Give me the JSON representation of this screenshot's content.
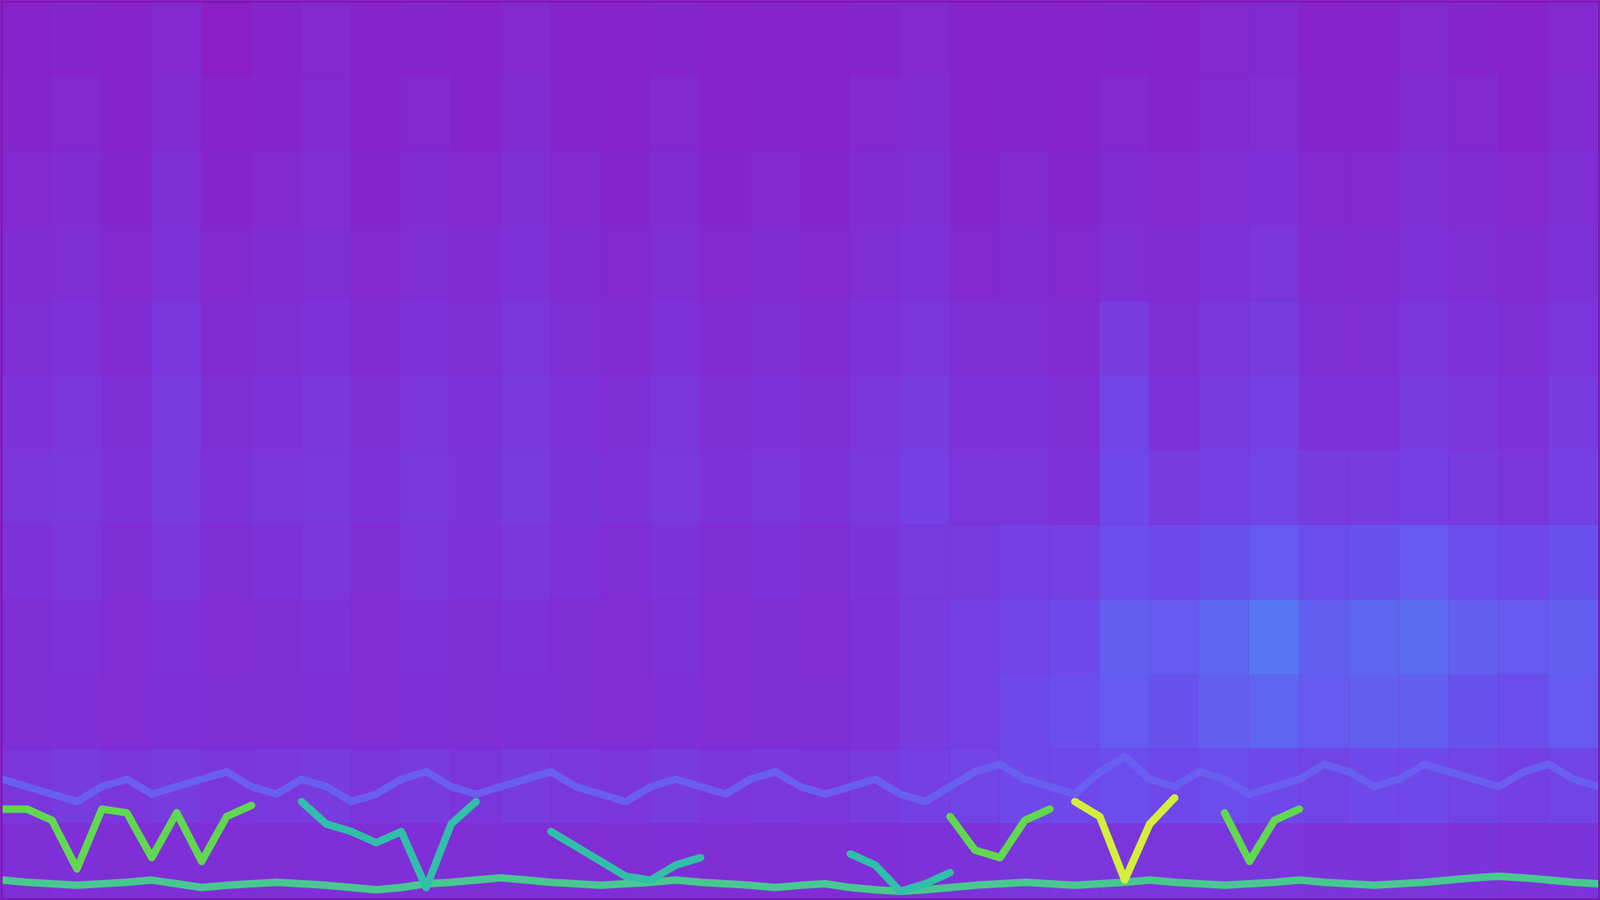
{
  "chart_data": {
    "type": "heatmap",
    "tick_labels": false,
    "xlim": [
      0,
      32
    ],
    "ylim": [
      0,
      12
    ],
    "cells": [
      [
        0.1,
        0.15,
        0.1,
        0.2,
        0,
        0.12,
        0.18,
        0.1,
        0.15,
        0.1,
        0.2,
        0.12,
        0.1,
        0.15,
        0.1,
        0.12,
        0.1,
        0.15,
        0.2,
        0.1,
        0.12,
        0.1,
        0.15,
        0.1,
        0.18,
        0.22,
        0.1,
        0.12,
        0.2,
        0.15,
        0.1,
        0.2
      ],
      [
        0.15,
        0.2,
        0.12,
        0.25,
        0.1,
        0.15,
        0.22,
        0.12,
        0.2,
        0.12,
        0.25,
        0.15,
        0.12,
        0.2,
        0.1,
        0.15,
        0.12,
        0.2,
        0.25,
        0.12,
        0.15,
        0.12,
        0.2,
        0.15,
        0.22,
        0.28,
        0.15,
        0.15,
        0.25,
        0.2,
        0.12,
        0.25
      ],
      [
        0.2,
        0.25,
        0.15,
        0.3,
        0.15,
        0.2,
        0.28,
        0.15,
        0.25,
        0.18,
        0.3,
        0.2,
        0.15,
        0.25,
        0.15,
        0.2,
        0.15,
        0.25,
        0.3,
        0.15,
        0.2,
        0.15,
        0.25,
        0.2,
        0.28,
        0.32,
        0.2,
        0.2,
        0.3,
        0.25,
        0.18,
        0.3
      ],
      [
        0.25,
        0.3,
        0.2,
        0.35,
        0.2,
        0.25,
        0.3,
        0.2,
        0.3,
        0.25,
        0.35,
        0.25,
        0.2,
        0.3,
        0.2,
        0.25,
        0.2,
        0.3,
        0.35,
        0.2,
        0.25,
        0.2,
        0.3,
        0.25,
        0.35,
        0.4,
        0.25,
        0.25,
        0.35,
        0.3,
        0.25,
        0.35
      ],
      [
        0.3,
        0.35,
        0.25,
        0.4,
        0.25,
        0.3,
        0.35,
        0.25,
        0.35,
        0.3,
        0.4,
        0.3,
        0.25,
        0.35,
        0.25,
        0.3,
        0.25,
        0.35,
        0.4,
        0.3,
        0.3,
        0.25,
        0.45,
        0.3,
        0.4,
        0.45,
        0.3,
        0.3,
        0.4,
        0.35,
        0.3,
        0.4
      ],
      [
        0.35,
        0.4,
        0.3,
        0.45,
        0.3,
        0.35,
        0.4,
        0.3,
        0.4,
        0.35,
        0.42,
        0.35,
        0.3,
        0.4,
        0.3,
        0.35,
        0.3,
        0.4,
        0.45,
        0.35,
        0.35,
        0.3,
        0.55,
        0.35,
        0.45,
        0.5,
        0.35,
        0.35,
        0.45,
        0.4,
        0.35,
        0.45
      ],
      [
        0.4,
        0.42,
        0.35,
        0.45,
        0.35,
        0.4,
        0.42,
        0.35,
        0.42,
        0.38,
        0.45,
        0.38,
        0.35,
        0.42,
        0.35,
        0.4,
        0.35,
        0.42,
        0.5,
        0.4,
        0.4,
        0.35,
        0.6,
        0.45,
        0.5,
        0.55,
        0.45,
        0.45,
        0.5,
        0.45,
        0.4,
        0.5
      ],
      [
        0.35,
        0.4,
        0.3,
        0.4,
        0.3,
        0.35,
        0.4,
        0.3,
        0.4,
        0.35,
        0.4,
        0.35,
        0.3,
        0.38,
        0.3,
        0.35,
        0.3,
        0.38,
        0.45,
        0.45,
        0.5,
        0.5,
        0.65,
        0.6,
        0.7,
        0.75,
        0.65,
        0.7,
        0.75,
        0.65,
        0.6,
        0.7
      ],
      [
        0.3,
        0.35,
        0.28,
        0.35,
        0.28,
        0.3,
        0.35,
        0.28,
        0.35,
        0.3,
        0.35,
        0.3,
        0.28,
        0.35,
        0.28,
        0.3,
        0.28,
        0.35,
        0.45,
        0.5,
        0.55,
        0.6,
        0.8,
        0.75,
        0.85,
        1,
        0.8,
        0.85,
        0.9,
        0.8,
        0.75,
        0.8
      ],
      [
        0.3,
        0.32,
        0.28,
        0.32,
        0.3,
        0.3,
        0.32,
        0.28,
        0.32,
        0.3,
        0.32,
        0.3,
        0.28,
        0.32,
        0.28,
        0.3,
        0.3,
        0.35,
        0.45,
        0.5,
        0.6,
        0.65,
        0.75,
        0.7,
        0.8,
        0.85,
        0.75,
        0.8,
        0.8,
        0.7,
        0.65,
        0.75
      ],
      [
        0.4,
        0.45,
        0.4,
        0.45,
        0.4,
        0.42,
        0.45,
        0.4,
        0.45,
        0.4,
        0.45,
        0.42,
        0.4,
        0.45,
        0.4,
        0.42,
        0.4,
        0.45,
        0.5,
        0.55,
        0.6,
        0.6,
        0.65,
        0.6,
        0.65,
        0.6,
        0.55,
        0.6,
        0.6,
        0.55,
        0.5,
        0.55
      ],
      [
        0.3,
        0.32,
        0.3,
        0.32,
        0.3,
        0.3,
        0.32,
        0.3,
        0.32,
        0.3,
        0.32,
        0.3,
        0.3,
        0.32,
        0.3,
        0.3,
        0.3,
        0.32,
        0.35,
        0.35,
        0.4,
        0.4,
        0.4,
        0.4,
        0.4,
        0.4,
        0.38,
        0.38,
        0.4,
        0.38,
        0.35,
        0.38
      ]
    ],
    "x": [
      0,
      0.5,
      1,
      1.5,
      2,
      2.5,
      3,
      3.5,
      4,
      4.5,
      5,
      5.5,
      6,
      6.5,
      7,
      7.5,
      8,
      8.5,
      9,
      9.5,
      10,
      10.5,
      11,
      11.5,
      12,
      12.5,
      13,
      13.5,
      14,
      14.5,
      15,
      15.5,
      16,
      16.5,
      17,
      17.5,
      18,
      18.5,
      19,
      19.5,
      20,
      20.5,
      21,
      21.5,
      22,
      22.5,
      23,
      23.5,
      24,
      24.5,
      25,
      25.5,
      26,
      26.5,
      27,
      27.5,
      28,
      28.5,
      29,
      29.5,
      30,
      30.5,
      31,
      31.5,
      32
    ],
    "series": [
      {
        "color": "#48c890",
        "values": [
          0.25,
          0.22,
          0.2,
          0.18,
          0.2,
          0.22,
          0.25,
          0.2,
          0.15,
          0.18,
          0.2,
          0.22,
          0.2,
          0.18,
          0.15,
          0.12,
          0.15,
          0.2,
          0.22,
          0.25,
          0.28,
          0.25,
          0.22,
          0.2,
          0.18,
          0.2,
          0.22,
          0.25,
          0.22,
          0.2,
          0.18,
          0.15,
          0.18,
          0.2,
          0.15,
          0.12,
          0.1,
          0.12,
          0.15,
          0.18,
          0.2,
          0.22,
          0.2,
          0.18,
          0.2,
          0.22,
          0.25,
          0.22,
          0.2,
          0.18,
          0.2,
          0.22,
          0.25,
          0.22,
          0.2,
          0.18,
          0.2,
          0.22,
          0.25,
          0.28,
          0.3,
          0.28,
          0.25,
          0.22,
          0.2
        ]
      },
      {
        "color": "#6a5ef0",
        "values": [
          1.6,
          1.5,
          1.4,
          1.3,
          1.5,
          1.6,
          1.4,
          1.5,
          1.6,
          1.7,
          1.5,
          1.4,
          1.6,
          1.5,
          1.3,
          1.4,
          1.6,
          1.7,
          1.5,
          1.4,
          1.5,
          1.6,
          1.7,
          1.5,
          1.4,
          1.3,
          1.5,
          1.6,
          1.5,
          1.4,
          1.6,
          1.7,
          1.5,
          1.4,
          1.5,
          1.6,
          1.4,
          1.3,
          1.5,
          1.7,
          1.8,
          1.6,
          1.5,
          1.4,
          1.7,
          1.9,
          1.6,
          1.5,
          1.7,
          1.6,
          1.4,
          1.5,
          1.6,
          1.8,
          1.7,
          1.5,
          1.6,
          1.8,
          1.7,
          1.6,
          1.5,
          1.7,
          1.8,
          1.6,
          1.5
        ]
      },
      {
        "color": "#30bfa8",
        "values": [
          null,
          null,
          null,
          null,
          null,
          null,
          null,
          null,
          null,
          null,
          null,
          null,
          1.3,
          1.0,
          0.9,
          0.75,
          0.9,
          0.15,
          1.0,
          1.3,
          null,
          null,
          0.9,
          0.7,
          0.5,
          0.3,
          0.25,
          0.45,
          0.55,
          null,
          null,
          null,
          null,
          null,
          0.6,
          0.45,
          0.1,
          0.2,
          0.35,
          null,
          null,
          null,
          null,
          null,
          null,
          null,
          null,
          null,
          null,
          null,
          null,
          null,
          null,
          null,
          null,
          null,
          null,
          null,
          null,
          null,
          null,
          null,
          null,
          null,
          null
        ]
      },
      {
        "color": "#60d850",
        "values": [
          1.2,
          1.2,
          1.05,
          0.4,
          1.2,
          1.15,
          0.55,
          1.15,
          0.5,
          1.1,
          1.25,
          null,
          null,
          null,
          null,
          null,
          null,
          null,
          null,
          null,
          null,
          null,
          null,
          null,
          null,
          null,
          null,
          null,
          null,
          null,
          null,
          null,
          null,
          null,
          null,
          null,
          null,
          null,
          1.1,
          0.65,
          0.55,
          1.05,
          1.2,
          null,
          null,
          null,
          null,
          null,
          null,
          1.15,
          0.5,
          1.05,
          1.2,
          null,
          null,
          null,
          null,
          null,
          null,
          null,
          null,
          null,
          null,
          null,
          null
        ]
      },
      {
        "color": "#d4ee3c",
        "values": [
          null,
          null,
          null,
          null,
          null,
          null,
          null,
          null,
          null,
          null,
          null,
          null,
          null,
          null,
          null,
          null,
          null,
          null,
          null,
          null,
          null,
          null,
          null,
          null,
          null,
          null,
          null,
          null,
          null,
          null,
          null,
          null,
          null,
          null,
          null,
          null,
          null,
          null,
          null,
          null,
          null,
          null,
          null,
          1.3,
          1.1,
          0.25,
          1.0,
          1.35,
          null,
          null,
          null,
          null,
          null,
          null,
          null,
          null,
          null,
          null,
          null,
          null,
          null,
          null,
          null,
          null,
          null
        ]
      }
    ]
  }
}
